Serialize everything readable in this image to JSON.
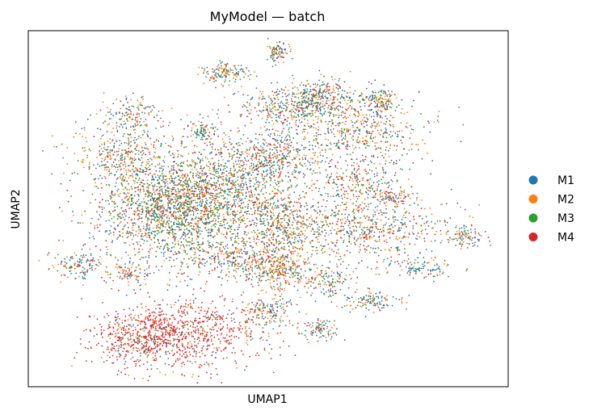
{
  "chart_data": {
    "type": "scatter",
    "title": "MyModel — batch",
    "xlabel": "UMAP1",
    "ylabel": "UMAP2",
    "xlim": [
      0,
      100
    ],
    "ylim": [
      0,
      100
    ],
    "grid": false,
    "ticks": false,
    "legend": {
      "placement": "right-outside",
      "marker": "circle"
    },
    "series": [
      {
        "name": "M1",
        "color": "#1f77b4"
      },
      {
        "name": "M2",
        "color": "#ff7f0e"
      },
      {
        "name": "M3",
        "color": "#2ca02c"
      },
      {
        "name": "M4",
        "color": "#d62728"
      }
    ],
    "clusters": [
      {
        "cx": 36,
        "cy": 54,
        "sx": 10,
        "sy": 7,
        "n": 1700,
        "mix": [
          0.3,
          0.25,
          0.25,
          0.2
        ]
      },
      {
        "cx": 29,
        "cy": 47,
        "sx": 7,
        "sy": 7,
        "n": 900,
        "mix": [
          0.28,
          0.26,
          0.28,
          0.18
        ]
      },
      {
        "cx": 34,
        "cy": 15,
        "sx": 8,
        "sy": 5,
        "n": 700,
        "mix": [
          0.08,
          0.14,
          0.06,
          0.72
        ]
      },
      {
        "cx": 23,
        "cy": 14,
        "sx": 5,
        "sy": 4,
        "n": 450,
        "mix": [
          0.08,
          0.14,
          0.06,
          0.72
        ]
      },
      {
        "cx": 19,
        "cy": 65,
        "sx": 5,
        "sy": 4,
        "n": 320,
        "mix": [
          0.3,
          0.4,
          0.15,
          0.15
        ]
      },
      {
        "cx": 21,
        "cy": 76,
        "sx": 3,
        "sy": 3,
        "n": 150,
        "mix": [
          0.3,
          0.4,
          0.15,
          0.15
        ]
      },
      {
        "cx": 50,
        "cy": 65,
        "sx": 6,
        "sy": 4,
        "n": 450,
        "mix": [
          0.3,
          0.3,
          0.2,
          0.2
        ]
      },
      {
        "cx": 55,
        "cy": 79,
        "sx": 6,
        "sy": 3,
        "n": 350,
        "mix": [
          0.3,
          0.3,
          0.2,
          0.2
        ]
      },
      {
        "cx": 61,
        "cy": 82,
        "sx": 3,
        "sy": 2.5,
        "n": 200,
        "mix": [
          0.35,
          0.3,
          0.15,
          0.2
        ]
      },
      {
        "cx": 68,
        "cy": 73,
        "sx": 7,
        "sy": 5,
        "n": 500,
        "mix": [
          0.28,
          0.3,
          0.2,
          0.22
        ]
      },
      {
        "cx": 69,
        "cy": 58,
        "sx": 5,
        "sy": 4,
        "n": 260,
        "mix": [
          0.3,
          0.3,
          0.2,
          0.2
        ]
      },
      {
        "cx": 70,
        "cy": 44,
        "sx": 9,
        "sy": 5,
        "n": 650,
        "mix": [
          0.25,
          0.3,
          0.2,
          0.25
        ]
      },
      {
        "cx": 53,
        "cy": 43,
        "sx": 4,
        "sy": 6,
        "n": 420,
        "mix": [
          0.2,
          0.3,
          0.2,
          0.3
        ]
      },
      {
        "cx": 52,
        "cy": 33,
        "sx": 4,
        "sy": 3,
        "n": 280,
        "mix": [
          0.3,
          0.45,
          0.1,
          0.15
        ]
      },
      {
        "cx": 42,
        "cy": 36,
        "sx": 5,
        "sy": 3,
        "n": 260,
        "mix": [
          0.3,
          0.3,
          0.2,
          0.2
        ]
      },
      {
        "cx": 50,
        "cy": 21,
        "sx": 2.5,
        "sy": 2,
        "n": 150,
        "mix": [
          0.35,
          0.35,
          0.15,
          0.15
        ]
      },
      {
        "cx": 61,
        "cy": 16,
        "sx": 2,
        "sy": 1.5,
        "n": 90,
        "mix": [
          0.4,
          0.3,
          0.15,
          0.15
        ]
      },
      {
        "cx": 71,
        "cy": 24,
        "sx": 3,
        "sy": 1.5,
        "n": 120,
        "mix": [
          0.45,
          0.25,
          0.2,
          0.1
        ]
      },
      {
        "cx": 62,
        "cy": 30,
        "sx": 3,
        "sy": 2,
        "n": 120,
        "mix": [
          0.35,
          0.3,
          0.15,
          0.2
        ]
      },
      {
        "cx": 41,
        "cy": 88,
        "sx": 2.5,
        "sy": 1.5,
        "n": 140,
        "mix": [
          0.3,
          0.4,
          0.15,
          0.15
        ]
      },
      {
        "cx": 52,
        "cy": 94,
        "sx": 1.2,
        "sy": 1.5,
        "n": 90,
        "mix": [
          0.4,
          0.3,
          0.15,
          0.15
        ]
      },
      {
        "cx": 36,
        "cy": 72,
        "sx": 1.5,
        "sy": 1.5,
        "n": 80,
        "mix": [
          0.4,
          0.25,
          0.2,
          0.15
        ]
      },
      {
        "cx": 73,
        "cy": 80,
        "sx": 2,
        "sy": 2,
        "n": 120,
        "mix": [
          0.3,
          0.3,
          0.2,
          0.2
        ]
      },
      {
        "cx": 11,
        "cy": 34,
        "sx": 3,
        "sy": 2,
        "n": 130,
        "mix": [
          0.3,
          0.3,
          0.2,
          0.2
        ]
      },
      {
        "cx": 21,
        "cy": 32,
        "sx": 2,
        "sy": 1.5,
        "n": 90,
        "mix": [
          0.3,
          0.45,
          0.1,
          0.15
        ]
      },
      {
        "cx": 82,
        "cy": 33,
        "sx": 3,
        "sy": 1.5,
        "n": 100,
        "mix": [
          0.45,
          0.25,
          0.2,
          0.1
        ]
      },
      {
        "cx": 91,
        "cy": 42,
        "sx": 2,
        "sy": 1.5,
        "n": 90,
        "mix": [
          0.45,
          0.3,
          0.15,
          0.1
        ]
      },
      {
        "cx": 75,
        "cy": 53,
        "sx": 2,
        "sy": 1.2,
        "n": 70,
        "mix": [
          0.3,
          0.3,
          0.1,
          0.3
        ]
      }
    ]
  }
}
